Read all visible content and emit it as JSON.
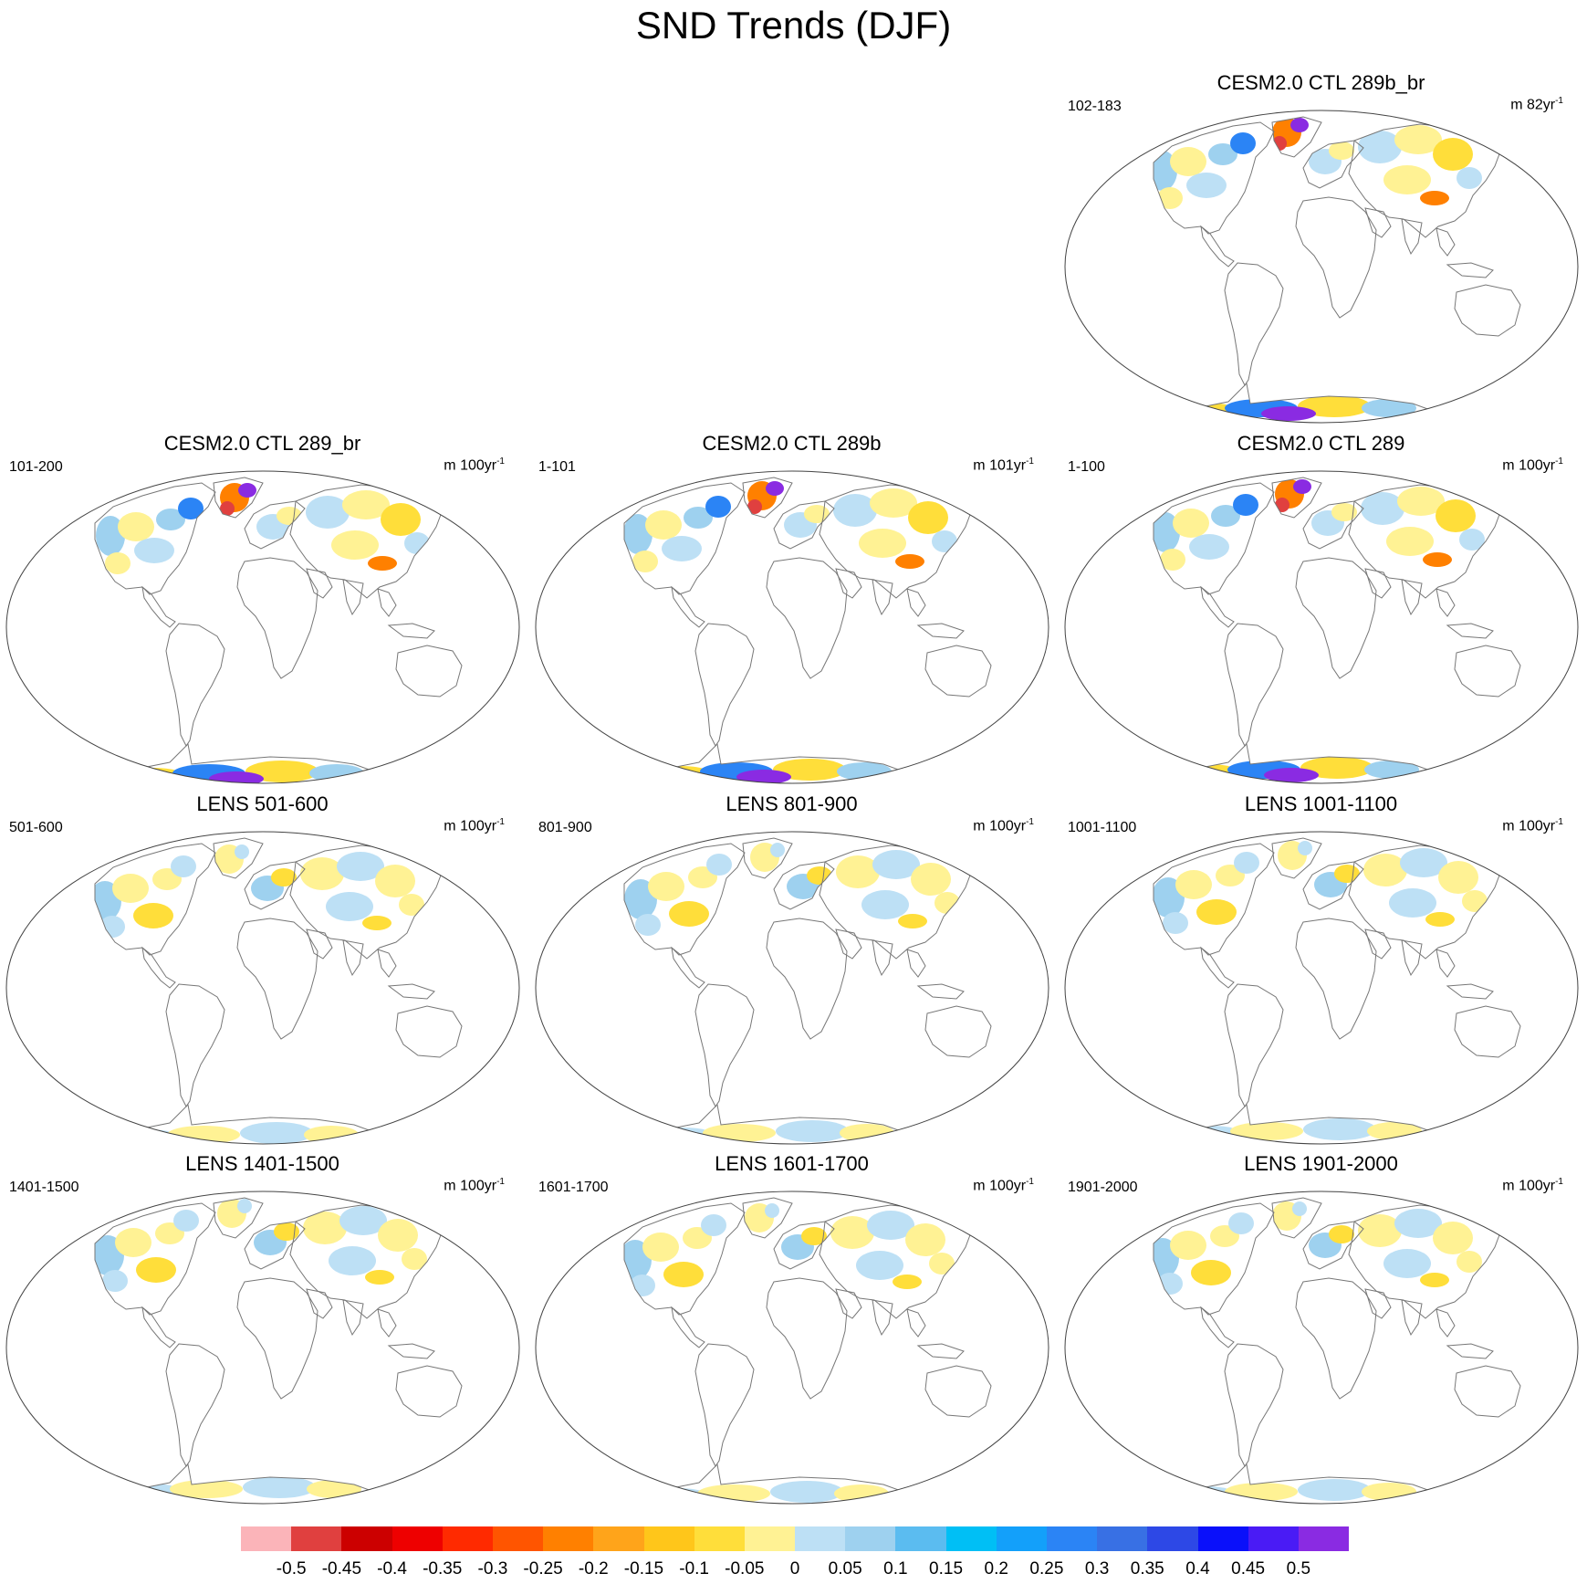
{
  "title": "SND Trends (DJF)",
  "panels": [
    {
      "title": "CESM2.0 CTL 289b_br",
      "years": "102-183",
      "units": "m 82yr",
      "units_exp": "-1"
    },
    {
      "title": "CESM2.0 CTL 289_br",
      "years": "101-200",
      "units": "m 100yr",
      "units_exp": "-1"
    },
    {
      "title": "CESM2.0 CTL 289b",
      "years": "1-101",
      "units": "m 101yr",
      "units_exp": "-1"
    },
    {
      "title": "CESM2.0 CTL 289",
      "years": "1-100",
      "units": "m 100yr",
      "units_exp": "-1"
    },
    {
      "title": "LENS 501-600",
      "years": "501-600",
      "units": "m 100yr",
      "units_exp": "-1"
    },
    {
      "title": "LENS 801-900",
      "years": "801-900",
      "units": "m 100yr",
      "units_exp": "-1"
    },
    {
      "title": "LENS 1001-1100",
      "years": "1001-1100",
      "units": "m 100yr",
      "units_exp": "-1"
    },
    {
      "title": "LENS 1401-1500",
      "years": "1401-1500",
      "units": "m 100yr",
      "units_exp": "-1"
    },
    {
      "title": "LENS 1601-1700",
      "years": "1601-1700",
      "units": "m 100yr",
      "units_exp": "-1"
    },
    {
      "title": "LENS 1901-2000",
      "years": "1901-2000",
      "units": "m 100yr",
      "units_exp": "-1"
    }
  ],
  "colorbar": {
    "labels": [
      "-0.5",
      "-0.45",
      "-0.4",
      "-0.35",
      "-0.3",
      "-0.25",
      "-0.2",
      "-0.15",
      "-0.1",
      "-0.05",
      "0",
      "0.05",
      "0.1",
      "0.15",
      "0.2",
      "0.25",
      "0.3",
      "0.35",
      "0.4",
      "0.45",
      "0.5"
    ],
    "colors": [
      "#fbb4b9",
      "#e0403f",
      "#cc0000",
      "#ee0000",
      "#ff2a00",
      "#ff5500",
      "#ff8000",
      "#ffa41a",
      "#ffc61a",
      "#ffde3a",
      "#fff294",
      "#bde0f5",
      "#9ed1ef",
      "#5bbcf0",
      "#00bff5",
      "#13a0fa",
      "#2b84f5",
      "#3870e4",
      "#2d48e6",
      "#0a10fa",
      "#4a1bf5",
      "#8a2be2"
    ]
  },
  "map_colors": {
    "neg_light": "#fff294",
    "neg_mid": "#ffde3a",
    "neg_strong": "#ff8000",
    "neg_max": "#e0403f",
    "pos_light": "#bde0f5",
    "pos_mid": "#9ed1ef",
    "pos_strong": "#2b84f5",
    "pos_max": "#8a2be2",
    "coast": "#777777",
    "border": "#444444"
  }
}
